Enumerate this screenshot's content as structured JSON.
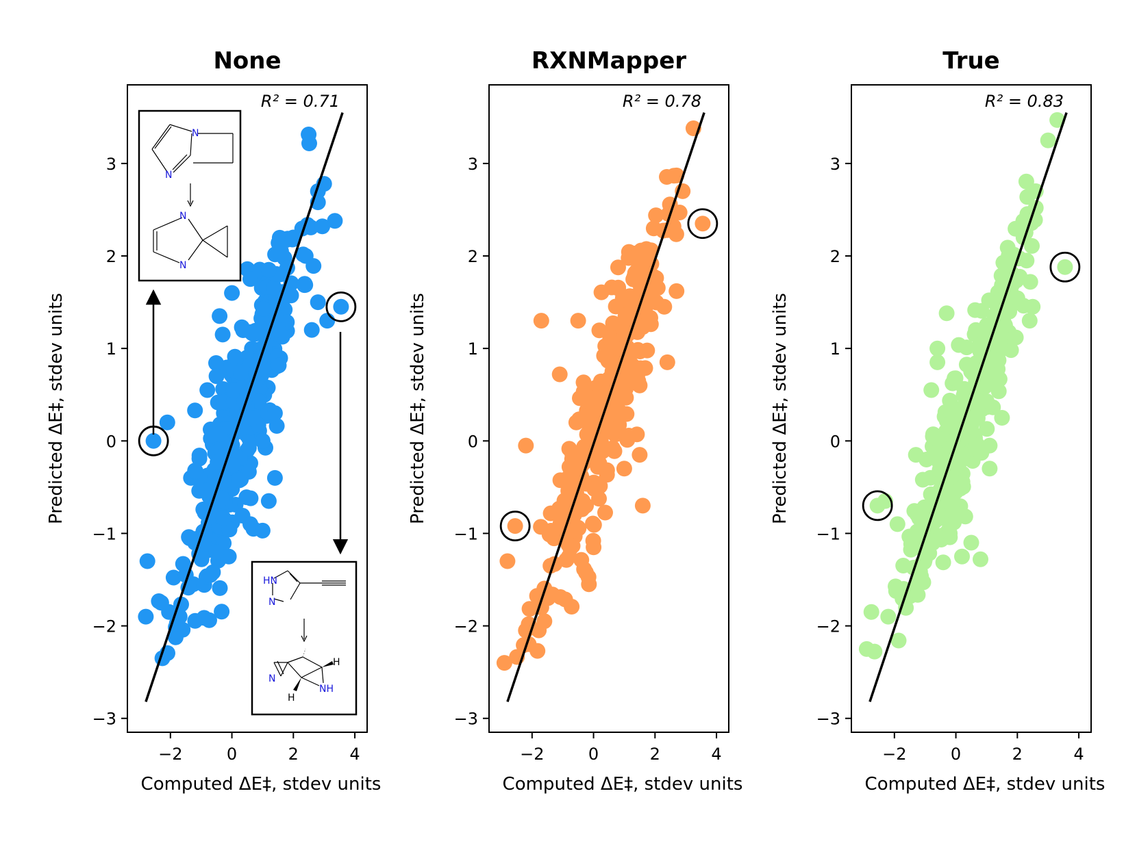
{
  "figure": {
    "accent_colors": {
      "None": "#2196f3",
      "RXNMapper": "#ff9a50",
      "True": "#b3f29a"
    }
  },
  "chart_data": [
    {
      "type": "scatter",
      "title": "None",
      "xlabel": "Computed ΔE‡, stdev units",
      "ylabel": "Predicted ΔE‡, stdev units",
      "annotation": "R² = 0.71",
      "xlim": [
        -3.4,
        4.4
      ],
      "ylim": [
        -3.15,
        3.85
      ],
      "xticks": [
        "−2",
        "0",
        "2",
        "4"
      ],
      "xtick_values": [
        -2,
        0,
        2,
        4
      ],
      "yticks": [
        "−3",
        "−2",
        "−1",
        "0",
        "1",
        "2",
        "3"
      ],
      "ytick_values": [
        -3,
        -2,
        -1,
        0,
        1,
        2,
        3
      ],
      "fit_line": [
        [
          -2.8,
          -2.82
        ],
        [
          3.6,
          3.55
        ]
      ],
      "color": "#2196f3",
      "highlighted": [
        [
          -2.55,
          0.0
        ],
        [
          3.55,
          1.45
        ]
      ],
      "n_points": 320,
      "seed": 11,
      "r2": 0.71,
      "extra_points": [
        [
          -2.75,
          -1.3
        ],
        [
          -2.8,
          -1.9
        ],
        [
          -2.1,
          0.2
        ],
        [
          -1.2,
          0.33
        ],
        [
          -0.3,
          1.15
        ],
        [
          -0.4,
          1.35
        ],
        [
          0.0,
          1.6
        ],
        [
          0.6,
          1.75
        ],
        [
          1.2,
          1.85
        ],
        [
          1.6,
          2.05
        ],
        [
          2.0,
          2.2
        ],
        [
          2.4,
          2.0
        ],
        [
          2.8,
          2.7
        ],
        [
          3.0,
          2.78
        ],
        [
          2.8,
          2.58
        ],
        [
          3.35,
          2.38
        ],
        [
          2.6,
          1.2
        ],
        [
          2.8,
          1.5
        ],
        [
          3.1,
          1.3
        ],
        [
          1.2,
          -0.65
        ],
        [
          1.4,
          -0.4
        ],
        [
          0.6,
          -0.9
        ],
        [
          0.7,
          -0.95
        ],
        [
          1.0,
          -0.97
        ],
        [
          -0.1,
          -1.25
        ],
        [
          -1.7,
          -1.9
        ],
        [
          -2.3,
          -1.75
        ],
        [
          -1.5,
          -1.45
        ],
        [
          -0.7,
          -1.45
        ],
        [
          -0.5,
          -1.2
        ],
        [
          -1.2,
          -1.1
        ],
        [
          1.4,
          0.3
        ],
        [
          1.0,
          0.0
        ],
        [
          -0.5,
          0.7
        ],
        [
          -0.8,
          0.55
        ]
      ]
    },
    {
      "type": "scatter",
      "title": "RXNMapper",
      "xlabel": "Computed ΔE‡, stdev units",
      "ylabel": "Predicted ΔE‡, stdev units",
      "annotation": "R² = 0.78",
      "xlim": [
        -3.4,
        4.4
      ],
      "ylim": [
        -3.15,
        3.85
      ],
      "xticks": [
        "−2",
        "0",
        "2",
        "4"
      ],
      "xtick_values": [
        -2,
        0,
        2,
        4
      ],
      "yticks": [
        "−3",
        "−2",
        "−1",
        "0",
        "1",
        "2",
        "3"
      ],
      "ytick_values": [
        -3,
        -2,
        -1,
        0,
        1,
        2,
        3
      ],
      "fit_line": [
        [
          -2.8,
          -2.82
        ],
        [
          3.6,
          3.55
        ]
      ],
      "color": "#ff9a50",
      "highlighted": [
        [
          -2.55,
          -0.92
        ],
        [
          3.55,
          2.35
        ]
      ],
      "n_points": 320,
      "seed": 23,
      "r2": 0.78,
      "extra_points": [
        [
          -2.9,
          -2.4
        ],
        [
          -2.8,
          -1.3
        ],
        [
          -2.2,
          -2.05
        ],
        [
          -1.6,
          -1.95
        ],
        [
          -2.2,
          -0.05
        ],
        [
          -1.7,
          1.3
        ],
        [
          -0.5,
          1.3
        ],
        [
          -1.1,
          0.72
        ],
        [
          3.25,
          3.38
        ],
        [
          2.7,
          2.87
        ],
        [
          2.9,
          2.7
        ],
        [
          2.8,
          2.47
        ],
        [
          2.4,
          2.28
        ],
        [
          2.7,
          1.62
        ],
        [
          2.3,
          1.45
        ],
        [
          2.4,
          0.85
        ],
        [
          1.6,
          1.9
        ],
        [
          1.5,
          1.7
        ],
        [
          1.5,
          0.6
        ],
        [
          0.8,
          1.65
        ],
        [
          1.6,
          -0.7
        ],
        [
          1.0,
          -0.3
        ],
        [
          1.5,
          -0.15
        ],
        [
          -0.15,
          -1.55
        ],
        [
          0.0,
          -1.15
        ],
        [
          -1.2,
          -1.0
        ],
        [
          -1.4,
          -1.35
        ],
        [
          -0.8,
          -1.25
        ]
      ]
    },
    {
      "type": "scatter",
      "title": "True",
      "xlabel": "Computed ΔE‡, stdev units",
      "ylabel": "Predicted ΔE‡, stdev units",
      "annotation": "R² = 0.83",
      "xlim": [
        -3.4,
        4.4
      ],
      "ylim": [
        -3.15,
        3.85
      ],
      "xticks": [
        "−2",
        "0",
        "2",
        "4"
      ],
      "xtick_values": [
        -2,
        0,
        2,
        4
      ],
      "yticks": [
        "−3",
        "−2",
        "−1",
        "0",
        "1",
        "2",
        "3"
      ],
      "ytick_values": [
        -3,
        -2,
        -1,
        0,
        1,
        2,
        3
      ],
      "fit_line": [
        [
          -2.8,
          -2.82
        ],
        [
          3.6,
          3.55
        ]
      ],
      "color": "#b3f29a",
      "highlighted": [
        [
          -2.55,
          -0.7
        ],
        [
          3.55,
          1.88
        ]
      ],
      "n_points": 300,
      "seed": 37,
      "r2": 0.83,
      "extra_points": [
        [
          -2.9,
          -2.25
        ],
        [
          -2.75,
          -1.85
        ],
        [
          -2.2,
          -1.9
        ],
        [
          -2.3,
          -0.65
        ],
        [
          -1.9,
          -0.9
        ],
        [
          -1.3,
          -0.15
        ],
        [
          -0.8,
          0.55
        ],
        [
          -0.6,
          1.0
        ],
        [
          -0.6,
          0.85
        ],
        [
          -0.3,
          1.38
        ],
        [
          3.3,
          3.47
        ],
        [
          3.0,
          3.25
        ],
        [
          2.6,
          2.7
        ],
        [
          2.6,
          2.52
        ],
        [
          2.2,
          2.38
        ],
        [
          2.2,
          2.2
        ],
        [
          2.3,
          1.95
        ],
        [
          2.5,
          1.45
        ],
        [
          2.4,
          1.3
        ],
        [
          1.8,
          1.6
        ],
        [
          1.6,
          1.25
        ],
        [
          1.5,
          0.25
        ],
        [
          1.1,
          -0.3
        ],
        [
          0.2,
          -1.25
        ],
        [
          0.5,
          -1.1
        ],
        [
          0.8,
          -1.28
        ],
        [
          -0.2,
          -1.0
        ],
        [
          -1.3,
          -1.62
        ],
        [
          -1.7,
          -1.6
        ],
        [
          1.1,
          -0.05
        ]
      ]
    }
  ],
  "insets": {
    "top_left": {
      "reactant_atoms": [
        "N",
        "N"
      ],
      "product_atoms": [
        "N",
        "N"
      ]
    },
    "bottom_right": {
      "reactant_atoms": [
        "HN",
        "N"
      ],
      "product_atoms": [
        "N",
        "NH",
        "H",
        "H"
      ]
    }
  }
}
